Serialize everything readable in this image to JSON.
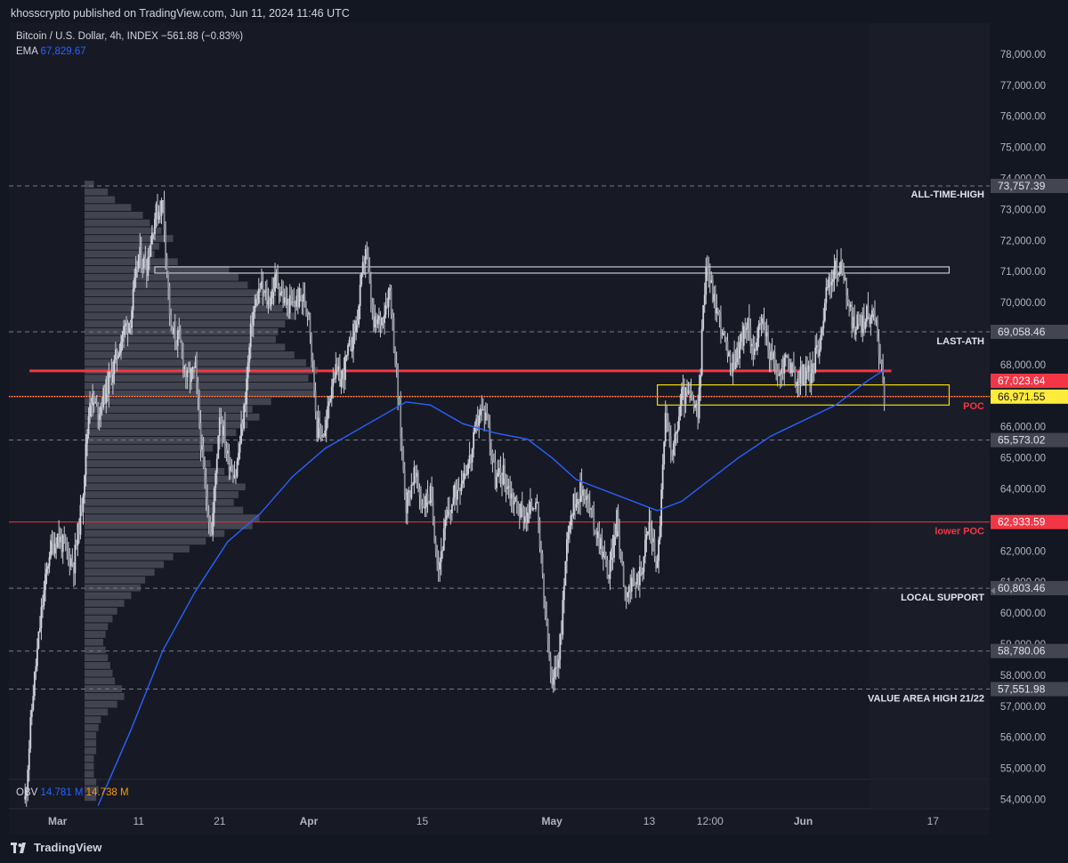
{
  "header": {
    "published": "khosscrypto published on TradingView.com, Jun 11, 2024 11:46 UTC"
  },
  "legend": {
    "symbol": "Bitcoin / U.S. Dollar, 4h, INDEX",
    "change": "−561.88 (−0.83%)",
    "ema_label": "EMA",
    "ema_value": "67,829.67"
  },
  "obv": {
    "label": "OBV",
    "v1": "14.781 M",
    "v2": "14.738 M"
  },
  "footer": {
    "brand": "TradingView"
  },
  "colors": {
    "background": "#131722",
    "candle": "#c9ccd4",
    "ema": "#2962ff",
    "poc": "#f23645",
    "zone": "#f5d90a",
    "price_label": "#ffeb3b"
  },
  "chart_data": {
    "type": "candlestick",
    "title": "Bitcoin / U.S. Dollar, 4h, INDEX",
    "ylim": [
      53700,
      79000
    ],
    "y_ticks": [
      54000,
      55000,
      56000,
      57000,
      58000,
      59000,
      60000,
      61000,
      62000,
      63000,
      64000,
      65000,
      66000,
      67000,
      68000,
      69000,
      70000,
      71000,
      72000,
      73000,
      74000,
      75000,
      76000,
      77000,
      78000
    ],
    "y_tick_labels": [
      "54,000.00",
      "55,000.00",
      "56,000.00",
      "57,000.00",
      "58,000.00",
      "59,000.00",
      "60,000.00",
      "61,000.00",
      "62,000.00",
      "63,000.00",
      "64,000.00",
      "65,000.00",
      "66,000.00",
      "67,000.00",
      "68,000.00",
      "69,000.00",
      "70,000.00",
      "71,000.00",
      "72,000.00",
      "73,000.00",
      "74,000.00",
      "75,000.00",
      "76,000.00",
      "77,000.00",
      "78,000.00"
    ],
    "x_range": [
      "2024-02-24",
      "2024-06-24"
    ],
    "x_ticks": [
      {
        "date": "2024-03-01",
        "label": "Mar",
        "bold": true
      },
      {
        "date": "2024-03-11",
        "label": "11",
        "bold": false
      },
      {
        "date": "2024-03-21",
        "label": "21",
        "bold": false
      },
      {
        "date": "2024-04-01",
        "label": "Apr",
        "bold": true
      },
      {
        "date": "2024-04-15",
        "label": "15",
        "bold": false
      },
      {
        "date": "2024-05-01",
        "label": "May",
        "bold": true
      },
      {
        "date": "2024-05-13",
        "label": "13",
        "bold": false
      },
      {
        "date": "2024-05-20T12:00",
        "label": "12:00",
        "bold": false
      },
      {
        "date": "2024-06-01",
        "label": "Jun",
        "bold": true
      },
      {
        "date": "2024-06-17",
        "label": "17",
        "bold": false
      }
    ],
    "price_path": [
      [
        "2024-02-26",
        54000
      ],
      [
        "2024-02-27",
        57500
      ],
      [
        "2024-02-28",
        60000
      ],
      [
        "2024-02-29",
        62000
      ],
      [
        "2024-03-01",
        62500
      ],
      [
        "2024-03-02",
        62000
      ],
      [
        "2024-03-03",
        61600
      ],
      [
        "2024-03-04",
        63500
      ],
      [
        "2024-03-05",
        67000
      ],
      [
        "2024-03-06",
        66500
      ],
      [
        "2024-03-07",
        67200
      ],
      [
        "2024-03-08",
        68000
      ],
      [
        "2024-03-09",
        69000
      ],
      [
        "2024-03-10",
        69500
      ],
      [
        "2024-03-11",
        71500
      ],
      [
        "2024-03-12",
        71200
      ],
      [
        "2024-03-13",
        72800
      ],
      [
        "2024-03-14",
        73200
      ],
      [
        "2024-03-15",
        69000
      ],
      [
        "2024-03-16",
        68800
      ],
      [
        "2024-03-17",
        67500
      ],
      [
        "2024-03-18",
        67800
      ],
      [
        "2024-03-19",
        64500
      ],
      [
        "2024-03-20",
        62500
      ],
      [
        "2024-03-21",
        66500
      ],
      [
        "2024-03-22",
        65000
      ],
      [
        "2024-03-23",
        64500
      ],
      [
        "2024-03-24",
        66500
      ],
      [
        "2024-03-25",
        69500
      ],
      [
        "2024-03-26",
        70500
      ],
      [
        "2024-03-27",
        70000
      ],
      [
        "2024-03-28",
        70800
      ],
      [
        "2024-03-29",
        70000
      ],
      [
        "2024-03-30",
        69900
      ],
      [
        "2024-03-31",
        70200
      ],
      [
        "2024-04-01",
        69800
      ],
      [
        "2024-04-02",
        66000
      ],
      [
        "2024-04-03",
        65800
      ],
      [
        "2024-04-04",
        67800
      ],
      [
        "2024-04-05",
        67500
      ],
      [
        "2024-04-06",
        68500
      ],
      [
        "2024-04-07",
        69500
      ],
      [
        "2024-04-08",
        71800
      ],
      [
        "2024-04-09",
        69200
      ],
      [
        "2024-04-10",
        69500
      ],
      [
        "2024-04-11",
        70500
      ],
      [
        "2024-04-12",
        67000
      ],
      [
        "2024-04-13",
        63500
      ],
      [
        "2024-04-14",
        64500
      ],
      [
        "2024-04-15",
        63500
      ],
      [
        "2024-04-16",
        63800
      ],
      [
        "2024-04-17",
        61500
      ],
      [
        "2024-04-18",
        63000
      ],
      [
        "2024-04-19",
        63800
      ],
      [
        "2024-04-20",
        64500
      ],
      [
        "2024-04-21",
        65000
      ],
      [
        "2024-04-22",
        66500
      ],
      [
        "2024-04-23",
        66400
      ],
      [
        "2024-04-24",
        64300
      ],
      [
        "2024-04-25",
        64500
      ],
      [
        "2024-04-26",
        63800
      ],
      [
        "2024-04-27",
        63300
      ],
      [
        "2024-04-28",
        63100
      ],
      [
        "2024-04-29",
        63800
      ],
      [
        "2024-04-30",
        60500
      ],
      [
        "2024-05-01",
        57500
      ],
      [
        "2024-05-02",
        59000
      ],
      [
        "2024-05-03",
        62900
      ],
      [
        "2024-05-04",
        63800
      ],
      [
        "2024-05-05",
        64000
      ],
      [
        "2024-05-06",
        63000
      ],
      [
        "2024-05-07",
        62300
      ],
      [
        "2024-05-08",
        61200
      ],
      [
        "2024-05-09",
        63000
      ],
      [
        "2024-05-10",
        60800
      ],
      [
        "2024-05-11",
        60800
      ],
      [
        "2024-05-12",
        61400
      ],
      [
        "2024-05-13",
        62900
      ],
      [
        "2024-05-14",
        61500
      ],
      [
        "2024-05-15",
        66200
      ],
      [
        "2024-05-16",
        65200
      ],
      [
        "2024-05-17",
        67000
      ],
      [
        "2024-05-18",
        67000
      ],
      [
        "2024-05-19",
        66300
      ],
      [
        "2024-05-20",
        71400
      ],
      [
        "2024-05-21",
        70100
      ],
      [
        "2024-05-22",
        69100
      ],
      [
        "2024-05-23",
        67900
      ],
      [
        "2024-05-24",
        68500
      ],
      [
        "2024-05-25",
        69300
      ],
      [
        "2024-05-26",
        68500
      ],
      [
        "2024-05-27",
        69400
      ],
      [
        "2024-05-28",
        68300
      ],
      [
        "2024-05-29",
        67600
      ],
      [
        "2024-05-30",
        68300
      ],
      [
        "2024-05-31",
        67500
      ],
      [
        "2024-06-01",
        67700
      ],
      [
        "2024-06-02",
        67700
      ],
      [
        "2024-06-03",
        68800
      ],
      [
        "2024-06-04",
        70500
      ],
      [
        "2024-06-05",
        71100
      ],
      [
        "2024-06-06",
        71000
      ],
      [
        "2024-06-07",
        69300
      ],
      [
        "2024-06-08",
        69300
      ],
      [
        "2024-06-09",
        69600
      ],
      [
        "2024-06-10",
        69500
      ],
      [
        "2024-06-11",
        66900
      ]
    ],
    "ema_path": [
      [
        "2024-03-06",
        53800
      ],
      [
        "2024-03-10",
        56200
      ],
      [
        "2024-03-14",
        58800
      ],
      [
        "2024-03-18",
        60700
      ],
      [
        "2024-03-22",
        62300
      ],
      [
        "2024-03-26",
        63200
      ],
      [
        "2024-03-30",
        64400
      ],
      [
        "2024-04-03",
        65300
      ],
      [
        "2024-04-07",
        65900
      ],
      [
        "2024-04-11",
        66500
      ],
      [
        "2024-04-13",
        66800
      ],
      [
        "2024-04-16",
        66700
      ],
      [
        "2024-04-20",
        66100
      ],
      [
        "2024-04-24",
        65800
      ],
      [
        "2024-04-28",
        65600
      ],
      [
        "2024-05-01",
        65000
      ],
      [
        "2024-05-04",
        64300
      ],
      [
        "2024-05-07",
        64000
      ],
      [
        "2024-05-10",
        63700
      ],
      [
        "2024-05-14",
        63300
      ],
      [
        "2024-05-17",
        63600
      ],
      [
        "2024-05-20",
        64200
      ],
      [
        "2024-05-24",
        65000
      ],
      [
        "2024-05-28",
        65700
      ],
      [
        "2024-06-01",
        66200
      ],
      [
        "2024-06-05",
        66700
      ],
      [
        "2024-06-09",
        67500
      ],
      [
        "2024-06-11",
        67830
      ]
    ],
    "ema_last": 67829.67,
    "current_price": 66971.55,
    "levels": [
      {
        "price": 73757.39,
        "label": "73,757.39",
        "name": "ALL-TIME-HIGH",
        "style": "dashed",
        "tag": "gray"
      },
      {
        "price": 69058.46,
        "label": "69,058.46",
        "name": "LAST-ATH",
        "style": "dashed",
        "tag": "gray"
      },
      {
        "price": 67023.64,
        "label": "67,023.64",
        "name": "",
        "style": "none",
        "tag": "red"
      },
      {
        "price": 66971.55,
        "label": "66,971.55",
        "name": "POC",
        "style": "solid-red",
        "tag": "yellow"
      },
      {
        "price": 65573.02,
        "label": "65,573.02",
        "name": "",
        "style": "dashed",
        "tag": "gray"
      },
      {
        "price": 62933.59,
        "label": "62,933.59",
        "name": "lower POC",
        "style": "solid-red",
        "tag": "red"
      },
      {
        "price": 60803.46,
        "label": "60,803.46",
        "name": "LOCAL SUPPORT",
        "style": "dashed",
        "tag": "gray"
      },
      {
        "price": 58780.06,
        "label": "58,780.06",
        "name": "",
        "style": "dashed",
        "tag": "gray"
      },
      {
        "price": 57551.98,
        "label": "57,551.98",
        "name": "VALUE AREA HIGH 21/22",
        "style": "dashed",
        "tag": "gray"
      }
    ],
    "resistance_line": {
      "price": 67800,
      "from": "2024-02-26",
      "to": "2024-06-11"
    },
    "zones": [
      {
        "from": "2024-03-13",
        "to": "2024-06-19",
        "top": 71150,
        "bottom": 70950,
        "color": "white"
      },
      {
        "from": "2024-05-14",
        "to": "2024-06-19",
        "top": 67350,
        "bottom": 66700,
        "color": "yellow"
      }
    ],
    "volume_profile": [
      [
        73800,
        0.04
      ],
      [
        73550,
        0.1
      ],
      [
        73300,
        0.13
      ],
      [
        73050,
        0.2
      ],
      [
        72800,
        0.25
      ],
      [
        72550,
        0.28
      ],
      [
        72300,
        0.33
      ],
      [
        72050,
        0.38
      ],
      [
        71800,
        0.32
      ],
      [
        71550,
        0.3
      ],
      [
        71300,
        0.4
      ],
      [
        71050,
        0.62
      ],
      [
        70800,
        0.66
      ],
      [
        70550,
        0.7
      ],
      [
        70300,
        0.8
      ],
      [
        70050,
        0.82
      ],
      [
        69800,
        0.85
      ],
      [
        69550,
        0.9
      ],
      [
        69300,
        0.86
      ],
      [
        69050,
        0.83
      ],
      [
        68800,
        0.82
      ],
      [
        68550,
        0.86
      ],
      [
        68300,
        0.9
      ],
      [
        68050,
        0.95
      ],
      [
        67800,
        1.0
      ],
      [
        67550,
        0.96
      ],
      [
        67300,
        0.98
      ],
      [
        67050,
        0.99
      ],
      [
        66800,
        0.8
      ],
      [
        66550,
        0.72
      ],
      [
        66300,
        0.75
      ],
      [
        66050,
        0.7
      ],
      [
        65800,
        0.65
      ],
      [
        65550,
        0.6
      ],
      [
        65300,
        0.55
      ],
      [
        65050,
        0.5
      ],
      [
        64800,
        0.54
      ],
      [
        64550,
        0.6
      ],
      [
        64300,
        0.65
      ],
      [
        64050,
        0.69
      ],
      [
        63800,
        0.66
      ],
      [
        63550,
        0.64
      ],
      [
        63300,
        0.68
      ],
      [
        63050,
        0.75
      ],
      [
        62800,
        0.72
      ],
      [
        62550,
        0.6
      ],
      [
        62300,
        0.52
      ],
      [
        62050,
        0.45
      ],
      [
        61800,
        0.38
      ],
      [
        61550,
        0.34
      ],
      [
        61300,
        0.3
      ],
      [
        61050,
        0.26
      ],
      [
        60800,
        0.24
      ],
      [
        60550,
        0.2
      ],
      [
        60300,
        0.17
      ],
      [
        60050,
        0.14
      ],
      [
        59800,
        0.12
      ],
      [
        59550,
        0.1
      ],
      [
        59300,
        0.09
      ],
      [
        59050,
        0.08
      ],
      [
        58800,
        0.09
      ],
      [
        58550,
        0.1
      ],
      [
        58300,
        0.11
      ],
      [
        58050,
        0.12
      ],
      [
        57800,
        0.13
      ],
      [
        57550,
        0.16
      ],
      [
        57300,
        0.17
      ],
      [
        57050,
        0.14
      ],
      [
        56800,
        0.1
      ],
      [
        56550,
        0.07
      ],
      [
        56300,
        0.06
      ],
      [
        56050,
        0.05
      ],
      [
        55800,
        0.05
      ],
      [
        55550,
        0.05
      ],
      [
        55300,
        0.04
      ],
      [
        55050,
        0.04
      ],
      [
        54800,
        0.04
      ],
      [
        54550,
        0.05
      ],
      [
        54300,
        0.06
      ],
      [
        54050,
        0.05
      ]
    ]
  }
}
